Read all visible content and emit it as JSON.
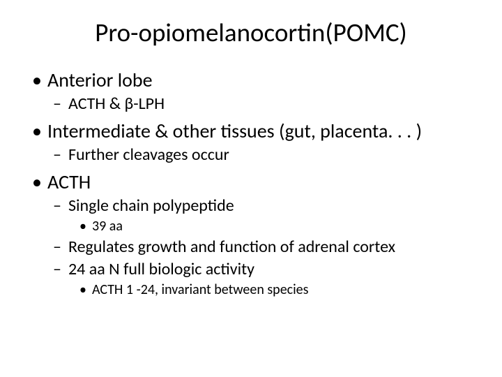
{
  "title": "Pro-opiomelanocortin(POMC)",
  "items": [
    {
      "level": 1,
      "text": "Anterior lobe"
    },
    {
      "level": 2,
      "text": "ACTH & β-LPH"
    },
    {
      "level": 1,
      "text": "Intermediate & other tissues (gut, placenta. . . )"
    },
    {
      "level": 2,
      "text": "Further cleavages occur"
    },
    {
      "level": 1,
      "text": "ACTH"
    },
    {
      "level": 2,
      "text": "Single chain polypeptide"
    },
    {
      "level": 3,
      "text": "39 aa"
    },
    {
      "level": 2,
      "text": "Regulates  growth and  function of adrenal cortex"
    },
    {
      "level": 2,
      "text": "24 aa N full biologic activity"
    },
    {
      "level": 3,
      "text": "ACTH 1 -24, invariant between species"
    }
  ],
  "style": {
    "background_color": "#ffffff",
    "text_color": "#000000",
    "title_fontsize": 37,
    "level1_fontsize": 28,
    "level2_fontsize": 24,
    "level3_fontsize": 20,
    "font_family": "Calibri"
  }
}
